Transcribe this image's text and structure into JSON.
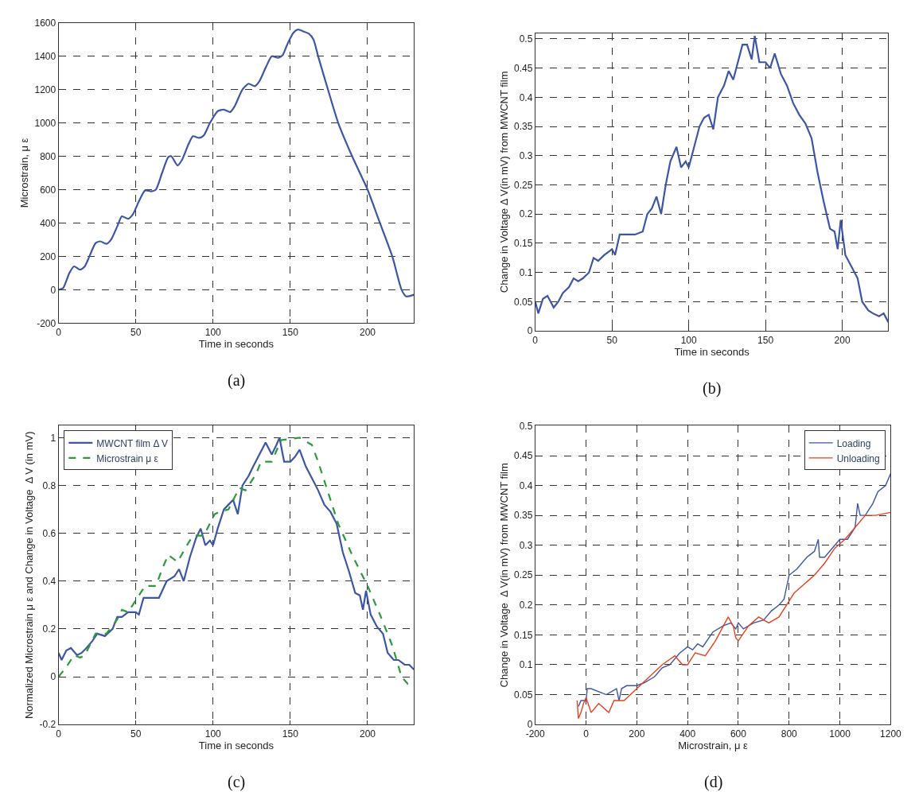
{
  "chart_data": [
    {
      "type": "line",
      "xlabel": "Time in seconds",
      "ylabel": "Microstrain, μ ε",
      "annotations": [
        "(a)"
      ],
      "xlim": [
        0,
        230
      ],
      "xticks": [
        0,
        50,
        100,
        150,
        200
      ],
      "ylim": [
        -200,
        1600
      ],
      "yticks": [
        -200,
        0,
        200,
        400,
        600,
        800,
        1000,
        1200,
        1400,
        1600
      ],
      "grid": true,
      "legend": false,
      "series": [
        {
          "color": "#3d55a5",
          "x": [
            0,
            3,
            7,
            10,
            14,
            17,
            20,
            24,
            27,
            31,
            34,
            38,
            41,
            45,
            48,
            52,
            56,
            60,
            63,
            67,
            71,
            73,
            77,
            80,
            84,
            87,
            91,
            94,
            98,
            103,
            107,
            111,
            114,
            119,
            123,
            127,
            130,
            134,
            138,
            142,
            145,
            148,
            152,
            155,
            158,
            162,
            165,
            168,
            175,
            181,
            190,
            200,
            208,
            216,
            222,
            225,
            230
          ],
          "values": [
            0,
            10,
            100,
            140,
            120,
            140,
            200,
            280,
            290,
            275,
            300,
            380,
            440,
            425,
            450,
            530,
            595,
            590,
            600,
            700,
            795,
            800,
            745,
            780,
            870,
            920,
            910,
            925,
            1000,
            1070,
            1080,
            1065,
            1100,
            1200,
            1235,
            1220,
            1250,
            1330,
            1400,
            1390,
            1405,
            1470,
            1540,
            1560,
            1550,
            1535,
            1500,
            1400,
            1180,
            1000,
            800,
            600,
            400,
            200,
            0,
            -40,
            -30
          ]
        }
      ]
    },
    {
      "type": "line",
      "xlabel": "Time in seconds",
      "ylabel": "Change in Voltage Δ V(in mV) from MWCNT film",
      "annotations": [
        "(b)"
      ],
      "xlim": [
        0,
        230
      ],
      "xticks": [
        0,
        50,
        100,
        150,
        200
      ],
      "ylim": [
        0,
        0.51
      ],
      "yticks": [
        0,
        0.05,
        0.1,
        0.15,
        0.2,
        0.25,
        0.3,
        0.35,
        0.4,
        0.45,
        0.5
      ],
      "grid": true,
      "legend": false,
      "series": [
        {
          "color": "#3d55a5",
          "x": [
            0,
            2,
            5,
            8,
            12,
            15,
            18,
            22,
            25,
            28,
            31,
            35,
            38,
            41,
            45,
            50,
            52,
            55,
            60,
            65,
            70,
            73,
            76,
            79,
            82,
            85,
            88,
            92,
            95,
            98,
            100,
            103,
            107,
            110,
            113,
            116,
            119,
            123,
            126,
            129,
            132,
            135,
            138,
            141,
            143,
            146,
            150,
            153,
            156,
            160,
            164,
            168,
            172,
            176,
            180,
            184,
            188,
            192,
            195,
            197,
            199,
            202,
            206,
            210,
            213,
            217,
            220,
            224,
            227,
            230
          ],
          "values": [
            0.05,
            0.03,
            0.055,
            0.06,
            0.04,
            0.05,
            0.065,
            0.075,
            0.09,
            0.085,
            0.09,
            0.1,
            0.125,
            0.12,
            0.13,
            0.14,
            0.13,
            0.165,
            0.165,
            0.165,
            0.17,
            0.2,
            0.21,
            0.23,
            0.2,
            0.25,
            0.29,
            0.315,
            0.28,
            0.29,
            0.28,
            0.31,
            0.35,
            0.365,
            0.37,
            0.345,
            0.4,
            0.42,
            0.445,
            0.43,
            0.46,
            0.49,
            0.49,
            0.465,
            0.505,
            0.46,
            0.46,
            0.45,
            0.475,
            0.44,
            0.42,
            0.39,
            0.37,
            0.355,
            0.33,
            0.27,
            0.22,
            0.175,
            0.17,
            0.14,
            0.19,
            0.13,
            0.11,
            0.09,
            0.05,
            0.035,
            0.03,
            0.025,
            0.03,
            0.015
          ]
        }
      ]
    },
    {
      "type": "line",
      "xlabel": "Time in seconds",
      "ylabel": "Normalized Microstrain μ ε and Change in Voltage  Δ V (in mV)",
      "annotations": [
        "(c)"
      ],
      "xlim": [
        0,
        230
      ],
      "xticks": [
        0,
        50,
        100,
        150,
        200
      ],
      "ylim": [
        -0.2,
        1.05
      ],
      "yticks": [
        -0.2,
        0,
        0.2,
        0.4,
        0.6,
        0.8,
        1
      ],
      "grid": true,
      "legend": "top left",
      "series": [
        {
          "name": "MWCNT film Δ V",
          "color": "#3d55a5",
          "line_style": "solid",
          "x": [
            0,
            2,
            5,
            8,
            12,
            15,
            18,
            22,
            25,
            30,
            35,
            38,
            41,
            45,
            50,
            52,
            55,
            60,
            65,
            70,
            75,
            78,
            81,
            85,
            89,
            92,
            95,
            98,
            100,
            103,
            107,
            110,
            113,
            116,
            119,
            123,
            126,
            130,
            134,
            138,
            141,
            143,
            146,
            150,
            153,
            156,
            160,
            164,
            168,
            172,
            176,
            180,
            184,
            188,
            192,
            195,
            197,
            199,
            202,
            206,
            210,
            213,
            217,
            220,
            224,
            227,
            230
          ],
          "values": [
            0.1,
            0.07,
            0.11,
            0.12,
            0.09,
            0.1,
            0.12,
            0.15,
            0.18,
            0.17,
            0.2,
            0.25,
            0.25,
            0.27,
            0.27,
            0.26,
            0.33,
            0.33,
            0.33,
            0.4,
            0.42,
            0.45,
            0.4,
            0.5,
            0.58,
            0.62,
            0.55,
            0.57,
            0.55,
            0.62,
            0.7,
            0.72,
            0.74,
            0.68,
            0.8,
            0.84,
            0.88,
            0.93,
            0.98,
            0.93,
            0.97,
            1.0,
            0.9,
            0.9,
            0.92,
            0.95,
            0.88,
            0.83,
            0.78,
            0.72,
            0.69,
            0.64,
            0.52,
            0.44,
            0.35,
            0.34,
            0.28,
            0.36,
            0.26,
            0.21,
            0.18,
            0.1,
            0.07,
            0.07,
            0.05,
            0.05,
            0.03
          ]
        },
        {
          "name": "Microstrain μ ε",
          "color": "#2a9a3a",
          "line_style": "dashed",
          "x": [
            0,
            5,
            10,
            14,
            17,
            24,
            31,
            38,
            41,
            45,
            52,
            56,
            63,
            67,
            71,
            77,
            84,
            87,
            94,
            101,
            104,
            110,
            117,
            121,
            128,
            131,
            138,
            144,
            156,
            164,
            168,
            181,
            190,
            200,
            208,
            216,
            222,
            226,
            230
          ],
          "values": [
            0,
            0.04,
            0.09,
            0.08,
            0.09,
            0.18,
            0.18,
            0.24,
            0.28,
            0.27,
            0.34,
            0.38,
            0.38,
            0.45,
            0.51,
            0.48,
            0.56,
            0.59,
            0.59,
            0.68,
            0.69,
            0.7,
            0.79,
            0.78,
            0.85,
            0.9,
            0.9,
            0.99,
            1.0,
            0.97,
            0.9,
            0.64,
            0.51,
            0.38,
            0.26,
            0.13,
            0,
            -0.03,
            -0.02
          ]
        }
      ]
    },
    {
      "type": "line",
      "xlabel": "Microstrain, μ ε",
      "ylabel": "Change in Voltage  Δ V(in mV) from MWCNT film",
      "annotations": [
        "(d)"
      ],
      "xlim": [
        -200,
        1200
      ],
      "xticks": [
        -200,
        0,
        200,
        400,
        600,
        800,
        1000,
        1200
      ],
      "ylim": [
        0,
        0.5
      ],
      "yticks": [
        0,
        0.05,
        0.1,
        0.15,
        0.2,
        0.25,
        0.3,
        0.35,
        0.4,
        0.45,
        0.5
      ],
      "grid": true,
      "legend": "top right",
      "series": [
        {
          "name": "Loading",
          "color": "#3d55a5",
          "line_style": "solid",
          "x": [
            -30,
            -20,
            0,
            5,
            20,
            50,
            80,
            120,
            130,
            140,
            160,
            200,
            230,
            270,
            300,
            330,
            370,
            400,
            420,
            440,
            460,
            500,
            540,
            570,
            590,
            600,
            620,
            660,
            700,
            730,
            760,
            780,
            800,
            830,
            870,
            900,
            915,
            920,
            940,
            980,
            1000,
            1030,
            1060,
            1070,
            1080,
            1100,
            1130,
            1150,
            1180,
            1200
          ],
          "values": [
            0.03,
            0.04,
            0.04,
            0.06,
            0.06,
            0.055,
            0.05,
            0.06,
            0.04,
            0.06,
            0.065,
            0.065,
            0.07,
            0.08,
            0.095,
            0.1,
            0.12,
            0.13,
            0.125,
            0.135,
            0.13,
            0.155,
            0.165,
            0.17,
            0.16,
            0.17,
            0.16,
            0.17,
            0.175,
            0.19,
            0.2,
            0.21,
            0.25,
            0.26,
            0.28,
            0.29,
            0.31,
            0.28,
            0.28,
            0.3,
            0.31,
            0.31,
            0.33,
            0.37,
            0.35,
            0.35,
            0.37,
            0.39,
            0.4,
            0.42
          ]
        },
        {
          "name": "Unloading",
          "color": "#e8401c",
          "line_style": "solid",
          "x": [
            -35,
            -30,
            -20,
            -10,
            0,
            20,
            50,
            90,
            110,
            150,
            200,
            250,
            300,
            350,
            380,
            400,
            430,
            470,
            510,
            560,
            580,
            590,
            600,
            640,
            680,
            720,
            760,
            790,
            820,
            860,
            900,
            940,
            980,
            1020,
            1060,
            1100,
            1140,
            1200
          ],
          "values": [
            0.04,
            0.01,
            0.02,
            0.035,
            0.045,
            0.02,
            0.035,
            0.02,
            0.04,
            0.04,
            0.06,
            0.08,
            0.1,
            0.115,
            0.1,
            0.1,
            0.12,
            0.115,
            0.14,
            0.18,
            0.165,
            0.145,
            0.14,
            0.165,
            0.18,
            0.17,
            0.18,
            0.2,
            0.22,
            0.235,
            0.25,
            0.27,
            0.295,
            0.31,
            0.33,
            0.35,
            0.35,
            0.355
          ]
        }
      ]
    }
  ]
}
